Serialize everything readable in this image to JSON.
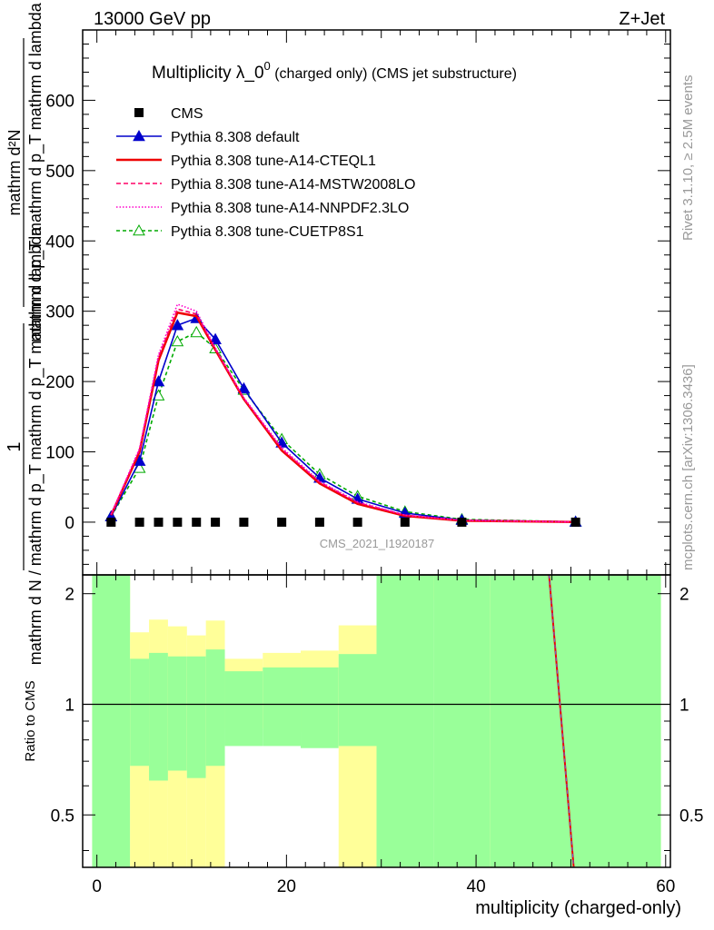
{
  "header": {
    "left": "13000 GeV pp",
    "right": "Z+Jet"
  },
  "side_text": {
    "rivet": "Rivet 3.1.10, ≥ 2.5M events",
    "mcplots": "mcplots.cern.ch [arXiv:1306.3436]"
  },
  "chart_data": {
    "type": "line",
    "title_main": "Multiplicity λ_0",
    "title_sup": "0",
    "title_rest": " (charged only) (CMS jet substructure)",
    "analysis_id": "CMS_2021_I1920187",
    "ylabel_lines": [
      "mathrm d N / mathrm d p_T mathrm d p_T mathrm d lambda",
      "1",
      "mathrm d²N",
      "mathrm d p_T mathrm d p_T mathrm d lambda"
    ],
    "ylabel_num": "mathrm d²N",
    "ylabel_den": "mathrm d p_T mathrm d p_T mathrm d lambda",
    "ylabel_pre_num": "1",
    "ylabel_pre_den": "mathrm d N / mathrm d p_T mathrm d p_T mathrm d lambda",
    "xlabel": "multiplicity (charged-only)",
    "ratio_ylabel": "Ratio to CMS",
    "xlim": [
      -1.5,
      60.5
    ],
    "ylim": [
      -75,
      700
    ],
    "ratio_ylim": [
      0.36,
      2.25
    ],
    "x_ticks": [
      "0",
      "20",
      "40",
      "60"
    ],
    "y_ticks": [
      "0",
      "100",
      "200",
      "300",
      "400",
      "500",
      "600"
    ],
    "ratio_ticks": [
      "0.5",
      "1",
      "2"
    ],
    "legend_position": "top-left",
    "series": [
      {
        "name": "CMS",
        "color": "#000000",
        "marker": "square",
        "dash": "",
        "x": [
          1.5,
          4.5,
          6.5,
          8.5,
          10.5,
          12.5,
          15.5,
          19.5,
          23.5,
          27.5,
          32.5,
          38.5,
          50.5
        ],
        "y": [
          0,
          0,
          0,
          0,
          0,
          0,
          0,
          0,
          0,
          0,
          0,
          0,
          0
        ]
      },
      {
        "name": "Pythia 8.308 default",
        "color": "#0000cc",
        "marker": "triangle-filled",
        "dash": "",
        "x": [
          1.5,
          4.5,
          6.5,
          8.5,
          10.5,
          12.5,
          15.5,
          19.5,
          23.5,
          27.5,
          32.5,
          38.5,
          50.5
        ],
        "y": [
          8,
          87,
          200,
          280,
          290,
          260,
          190,
          113,
          63,
          33,
          13,
          3,
          0.5
        ]
      },
      {
        "name": "Pythia 8.308 tune-A14-CTEQL1",
        "color": "#ee0000",
        "marker": "",
        "dash": "",
        "x": [
          1.5,
          4.5,
          6.5,
          8.5,
          10.5,
          12.5,
          15.5,
          19.5,
          23.5,
          27.5,
          32.5,
          38.5,
          50.5
        ],
        "y": [
          10,
          100,
          230,
          298,
          293,
          245,
          175,
          102,
          55,
          26,
          9,
          2,
          0.3
        ]
      },
      {
        "name": "Pythia 8.308 tune-A14-MSTW2008LO",
        "color": "#ff0066",
        "marker": "",
        "dash": "5,3",
        "x": [
          1.5,
          4.5,
          6.5,
          8.5,
          10.5,
          12.5,
          15.5,
          19.5,
          23.5,
          27.5,
          32.5,
          38.5,
          50.5
        ],
        "y": [
          11,
          103,
          235,
          303,
          296,
          246,
          176,
          104,
          57,
          28,
          10,
          2.5,
          0.3
        ]
      },
      {
        "name": "Pythia 8.308 tune-A14-NNPDF2.3LO",
        "color": "#ff00cc",
        "marker": "",
        "dash": "1.5,2",
        "x": [
          1.5,
          4.5,
          6.5,
          8.5,
          10.5,
          12.5,
          15.5,
          19.5,
          23.5,
          27.5,
          32.5,
          38.5,
          50.5
        ],
        "y": [
          11,
          105,
          238,
          310,
          300,
          248,
          177,
          106,
          58,
          29,
          10,
          2.5,
          0.3
        ]
      },
      {
        "name": "Pythia 8.308 tune-CUETP8S1",
        "color": "#00aa00",
        "marker": "triangle-open",
        "dash": "4,3",
        "x": [
          1.5,
          4.5,
          6.5,
          8.5,
          10.5,
          12.5,
          15.5,
          19.5,
          23.5,
          27.5,
          32.5,
          38.5,
          50.5
        ],
        "y": [
          8,
          77,
          180,
          257,
          270,
          247,
          188,
          118,
          68,
          37,
          15,
          4,
          0.5
        ]
      }
    ],
    "ratio_bands": {
      "bins": [
        [
          -0.5,
          3.5
        ],
        [
          3.5,
          5.5
        ],
        [
          5.5,
          7.5
        ],
        [
          7.5,
          9.5
        ],
        [
          9.5,
          11.5
        ],
        [
          11.5,
          13.5
        ],
        [
          13.5,
          17.5
        ],
        [
          17.5,
          21.5
        ],
        [
          21.5,
          25.5
        ],
        [
          25.5,
          29.5
        ],
        [
          29.5,
          35.5
        ],
        [
          35.5,
          41.5
        ],
        [
          41.5,
          59.5
        ]
      ],
      "green_lo": [
        0.36,
        0.68,
        0.62,
        0.66,
        0.63,
        0.68,
        0.77,
        0.77,
        0.76,
        0.77,
        0.36,
        0.36,
        0.36
      ],
      "green_hi": [
        2.25,
        1.33,
        1.38,
        1.35,
        1.35,
        1.41,
        1.23,
        1.26,
        1.26,
        1.37,
        2.25,
        2.25,
        2.25
      ],
      "yellow_lo": [
        0.36,
        0.36,
        0.36,
        0.36,
        0.36,
        0.36,
        0.86,
        0.86,
        0.84,
        0.36,
        0.36,
        1.93,
        0.36
      ],
      "yellow_hi": [
        2.25,
        1.57,
        1.7,
        1.63,
        1.54,
        1.69,
        1.33,
        1.38,
        1.4,
        1.64,
        2.25,
        2.25,
        2.25
      ]
    },
    "ratio_line": {
      "x": [
        47.7,
        50.3
      ],
      "y": [
        2.25,
        0.36
      ]
    }
  }
}
